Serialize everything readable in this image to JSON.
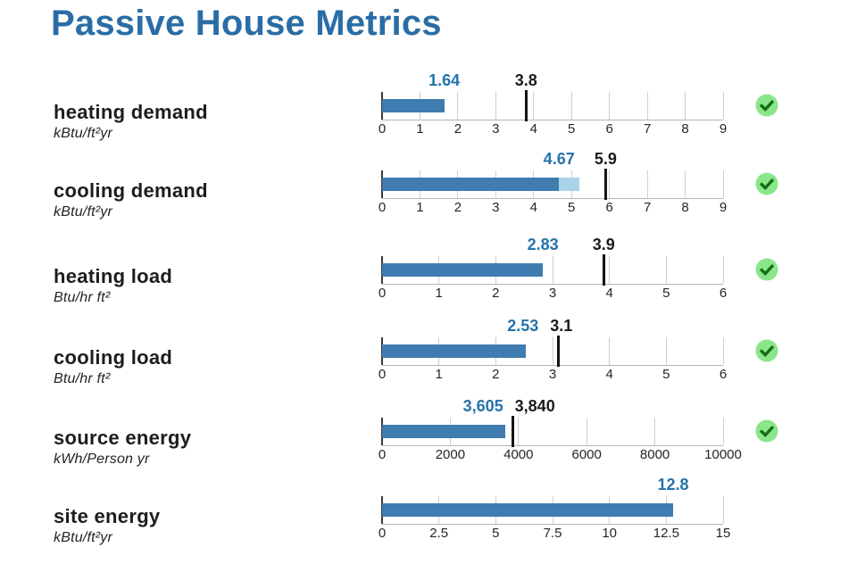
{
  "title": "Passive House Metrics",
  "colors": {
    "title": "#2a6da6",
    "accent_value": "#2573ab",
    "bar": "#3f7cb0",
    "bar_light": "#a9d3e9",
    "limit_line": "#141414",
    "grid": "#cfcfcf",
    "axis": "#b5b5b5",
    "check_background": "#8ae68a",
    "check_mark": "#156e15"
  },
  "chart_data": [
    {
      "type": "bar",
      "name": "heating demand",
      "unit": "kBtu/ft²yr",
      "value": 1.64,
      "value_label": "1.64",
      "limit": 3.8,
      "limit_label": "3.8",
      "axis_min": 0,
      "axis_max": 9,
      "ticks": [
        0,
        1,
        2,
        3,
        4,
        5,
        6,
        7,
        8,
        9
      ],
      "tick_labels": [
        "0",
        "1",
        "2",
        "3",
        "4",
        "5",
        "6",
        "7",
        "8",
        "9"
      ],
      "pass": true,
      "status_icon": "check-circle"
    },
    {
      "type": "bar",
      "name": "cooling demand",
      "unit": "kBtu/ft²yr",
      "value": 4.67,
      "value_label": "4.67",
      "value_light_end": 5.2,
      "limit": 5.9,
      "limit_label": "5.9",
      "axis_min": 0,
      "axis_max": 9,
      "ticks": [
        0,
        1,
        2,
        3,
        4,
        5,
        6,
        7,
        8,
        9
      ],
      "tick_labels": [
        "0",
        "1",
        "2",
        "3",
        "4",
        "5",
        "6",
        "7",
        "8",
        "9"
      ],
      "pass": true,
      "status_icon": "check-circle"
    },
    {
      "type": "bar",
      "name": "heating load",
      "unit": "Btu/hr ft²",
      "value": 2.83,
      "value_label": "2.83",
      "limit": 3.9,
      "limit_label": "3.9",
      "axis_min": 0,
      "axis_max": 6,
      "ticks": [
        0,
        1,
        2,
        3,
        4,
        5,
        6
      ],
      "tick_labels": [
        "0",
        "1",
        "2",
        "3",
        "4",
        "5",
        "6"
      ],
      "pass": true,
      "status_icon": "check-circle"
    },
    {
      "type": "bar",
      "name": "cooling load",
      "unit": "Btu/hr ft²",
      "value": 2.53,
      "value_label": "2.53",
      "limit": 3.1,
      "limit_label": "3.1",
      "axis_min": 0,
      "axis_max": 6,
      "ticks": [
        0,
        1,
        2,
        3,
        4,
        5,
        6
      ],
      "tick_labels": [
        "0",
        "1",
        "2",
        "3",
        "4",
        "5",
        "6"
      ],
      "pass": true,
      "status_icon": "check-circle"
    },
    {
      "type": "bar",
      "name": "source energy",
      "unit": "kWh/Person yr",
      "value": 3605,
      "value_label": "3,605",
      "limit": 3840,
      "limit_label": "3,840",
      "axis_min": 0,
      "axis_max": 10000,
      "ticks": [
        0,
        2000,
        4000,
        6000,
        8000,
        10000
      ],
      "tick_labels": [
        "0",
        "2000",
        "4000",
        "6000",
        "8000",
        "10000"
      ],
      "pass": true,
      "status_icon": "check-circle"
    },
    {
      "type": "bar",
      "name": "site energy",
      "unit": "kBtu/ft²yr",
      "value": 12.8,
      "value_label": "12.8",
      "limit": null,
      "limit_label": null,
      "axis_min": 0,
      "axis_max": 15,
      "ticks": [
        0,
        2.5,
        5,
        7.5,
        10,
        12.5,
        15
      ],
      "tick_labels": [
        "0",
        "2.5",
        "5",
        "7.5",
        "10",
        "12.5",
        "15"
      ],
      "pass": false,
      "status_icon": null
    }
  ]
}
